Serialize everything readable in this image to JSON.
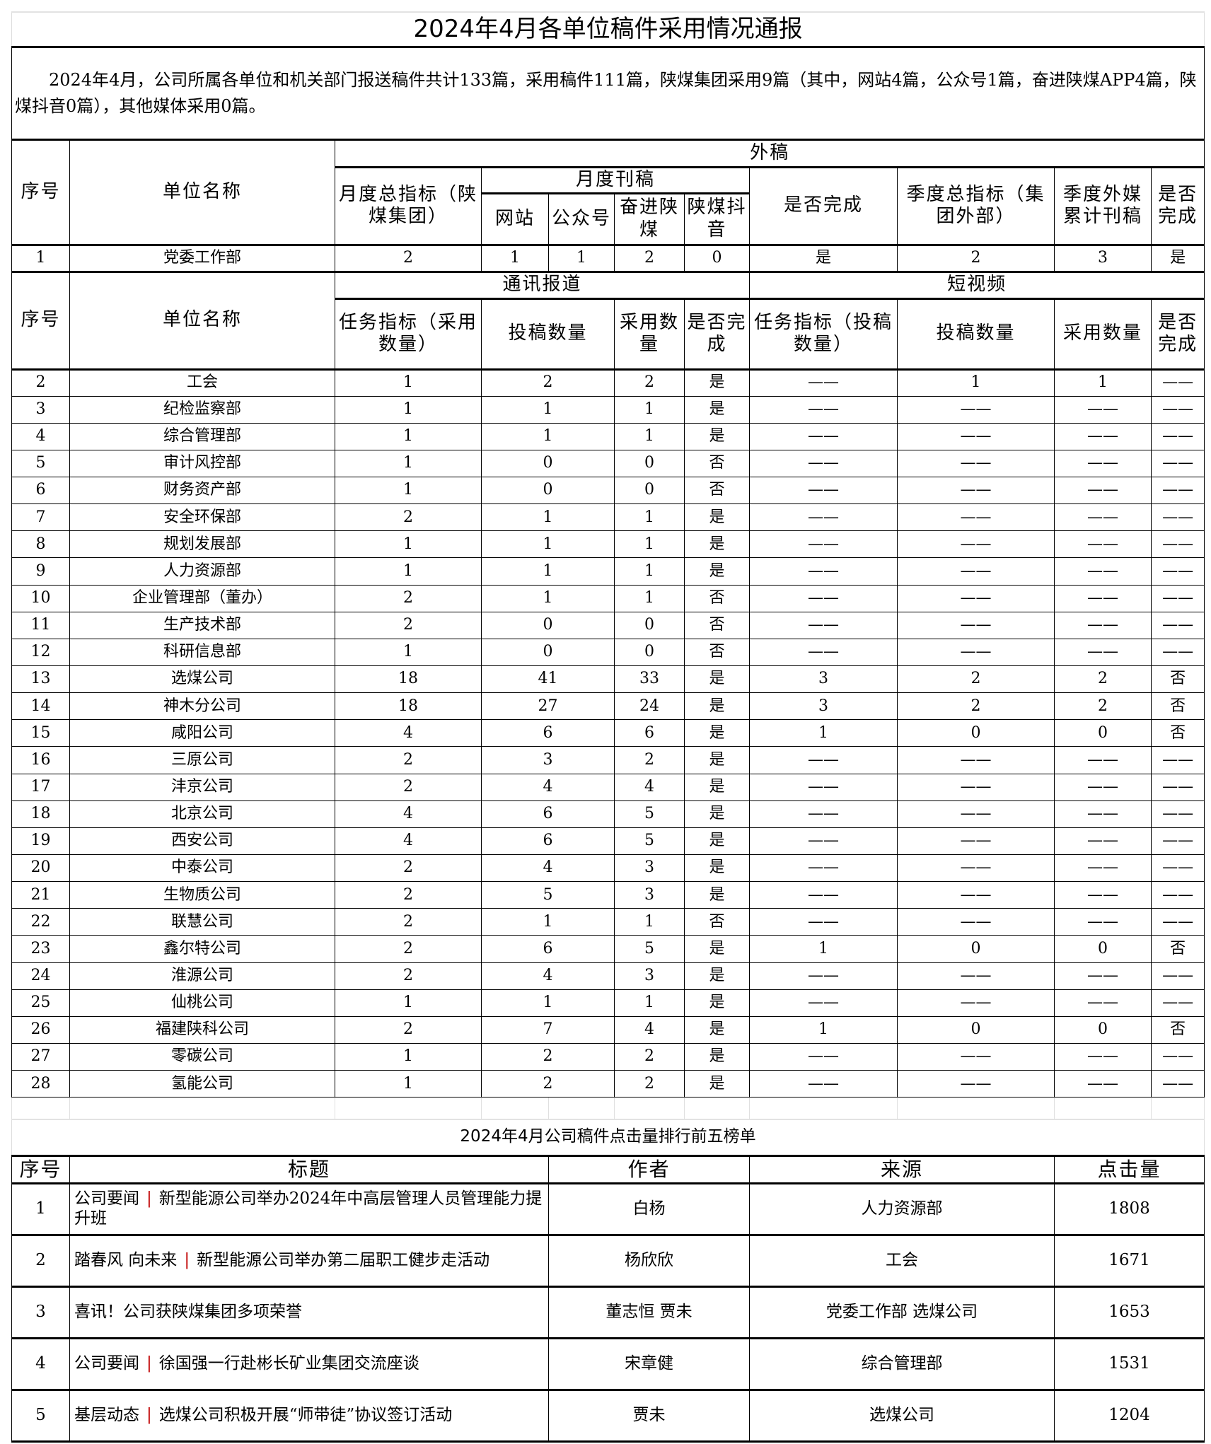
{
  "report": {
    "title": "2024年4月各单位稿件采用情况通报",
    "summary": "2024年4月，公司所属各单位和机关部门报送稿件共计133篇，采用稿件111篇，陕煤集团采用9篇（其中，网站4篇，公众号1篇，奋进陕煤APP4篇，陕煤抖音0篇），其他媒体采用0篇。",
    "header1": {
      "seq": "序号",
      "unit": "单位名称",
      "external": "外稿",
      "monthly_target": "月度总指标（陕煤集团）",
      "monthly_pub": "月度刊稿",
      "done": "是否完成",
      "quarter_target": "季度总指标（集团外部）",
      "quarter_media": "季度外媒累计刊稿",
      "done2": "是否完成",
      "website": "网站",
      "wechat": "公众号",
      "app": "奋进陕煤",
      "douyin": "陕煤抖音"
    },
    "row1": [
      "1",
      "党委工作部",
      "2",
      "1",
      "1",
      "2",
      "0",
      "是",
      "2",
      "3",
      "是"
    ],
    "header2": {
      "seq": "序号",
      "unit": "单位名称",
      "news": "通讯报道",
      "video": "短视频",
      "task_adopt": "任务指标（采用数量）",
      "submit": "投稿数量",
      "adopt": "采用数量",
      "done": "是否完成",
      "task_submit": "任务指标（投稿数量）",
      "submit2": "投稿数量",
      "adopt2": "采用数量",
      "done2": "是否完成"
    },
    "rows": [
      [
        "2",
        "工会",
        "1",
        "2",
        "2",
        "是",
        "——",
        "1",
        "1",
        "——"
      ],
      [
        "3",
        "纪检监察部",
        "1",
        "1",
        "1",
        "是",
        "——",
        "——",
        "——",
        "——"
      ],
      [
        "4",
        "综合管理部",
        "1",
        "1",
        "1",
        "是",
        "——",
        "——",
        "——",
        "——"
      ],
      [
        "5",
        "审计风控部",
        "1",
        "0",
        "0",
        "否",
        "——",
        "——",
        "——",
        "——"
      ],
      [
        "6",
        "财务资产部",
        "1",
        "0",
        "0",
        "否",
        "——",
        "——",
        "——",
        "——"
      ],
      [
        "7",
        "安全环保部",
        "2",
        "1",
        "1",
        "是",
        "——",
        "——",
        "——",
        "——"
      ],
      [
        "8",
        "规划发展部",
        "1",
        "1",
        "1",
        "是",
        "——",
        "——",
        "——",
        "——"
      ],
      [
        "9",
        "人力资源部",
        "1",
        "1",
        "1",
        "是",
        "——",
        "——",
        "——",
        "——"
      ],
      [
        "10",
        "企业管理部（董办）",
        "2",
        "1",
        "1",
        "否",
        "——",
        "——",
        "——",
        "——"
      ],
      [
        "11",
        "生产技术部",
        "2",
        "0",
        "0",
        "否",
        "——",
        "——",
        "——",
        "——"
      ],
      [
        "12",
        "科研信息部",
        "1",
        "0",
        "0",
        "否",
        "——",
        "——",
        "——",
        "——"
      ],
      [
        "13",
        "选煤公司",
        "18",
        "41",
        "33",
        "是",
        "3",
        "2",
        "2",
        "否"
      ],
      [
        "14",
        "神木分公司",
        "18",
        "27",
        "24",
        "是",
        "3",
        "2",
        "2",
        "否"
      ],
      [
        "15",
        "咸阳公司",
        "4",
        "6",
        "6",
        "是",
        "1",
        "0",
        "0",
        "否"
      ],
      [
        "16",
        "三原公司",
        "2",
        "3",
        "2",
        "是",
        "——",
        "——",
        "——",
        "——"
      ],
      [
        "17",
        "沣京公司",
        "2",
        "4",
        "4",
        "是",
        "——",
        "——",
        "——",
        "——"
      ],
      [
        "18",
        "北京公司",
        "4",
        "6",
        "5",
        "是",
        "——",
        "——",
        "——",
        "——"
      ],
      [
        "19",
        "西安公司",
        "4",
        "6",
        "5",
        "是",
        "——",
        "——",
        "——",
        "——"
      ],
      [
        "20",
        "中泰公司",
        "2",
        "4",
        "3",
        "是",
        "——",
        "——",
        "——",
        "——"
      ],
      [
        "21",
        "生物质公司",
        "2",
        "5",
        "3",
        "是",
        "——",
        "——",
        "——",
        "——"
      ],
      [
        "22",
        "联慧公司",
        "2",
        "1",
        "1",
        "否",
        "——",
        "——",
        "——",
        "——"
      ],
      [
        "23",
        "鑫尔特公司",
        "2",
        "6",
        "5",
        "是",
        "1",
        "0",
        "0",
        "否"
      ],
      [
        "24",
        "淮源公司",
        "2",
        "4",
        "3",
        "是",
        "——",
        "——",
        "——",
        "——"
      ],
      [
        "25",
        "仙桃公司",
        "1",
        "1",
        "1",
        "是",
        "——",
        "——",
        "——",
        "——"
      ],
      [
        "26",
        "福建陕科公司",
        "2",
        "7",
        "4",
        "是",
        "1",
        "0",
        "0",
        "否"
      ],
      [
        "27",
        "零碳公司",
        "1",
        "2",
        "2",
        "是",
        "——",
        "——",
        "——",
        "——"
      ],
      [
        "28",
        "氢能公司",
        "1",
        "2",
        "2",
        "是",
        "——",
        "——",
        "——",
        "——"
      ]
    ]
  },
  "ranking": {
    "title": "2024年4月公司稿件点击量排行前五榜单",
    "headers": {
      "seq": "序号",
      "title": "标题",
      "author": "作者",
      "source": "来源",
      "clicks": "点击量"
    },
    "separator": "|",
    "separator_color": "#c00000",
    "rows": [
      {
        "seq": "1",
        "column": "公司要闻",
        "headline": "新型能源公司举办2024年中高层管理人员管理能力提升班",
        "author": "白杨",
        "source": "人力资源部",
        "clicks": "1808"
      },
      {
        "seq": "2",
        "column": "踏春风 向未来",
        "headline": "新型能源公司举办第二届职工健步走活动",
        "author": "杨欣欣",
        "source": "工会",
        "clicks": "1671"
      },
      {
        "seq": "3",
        "column": "",
        "headline": "喜讯！公司获陕煤集团多项荣誉",
        "author": "董志恒 贾未",
        "source": "党委工作部 选煤公司",
        "clicks": "1653"
      },
      {
        "seq": "4",
        "column": "公司要闻",
        "headline": "徐国强一行赴彬长矿业集团交流座谈",
        "author": "宋章健",
        "source": "综合管理部",
        "clicks": "1531"
      },
      {
        "seq": "5",
        "column": "基层动态",
        "headline": "选煤公司积极开展“师带徒”协议签订活动",
        "author": "贾未",
        "source": "选煤公司",
        "clicks": "1204"
      }
    ]
  }
}
